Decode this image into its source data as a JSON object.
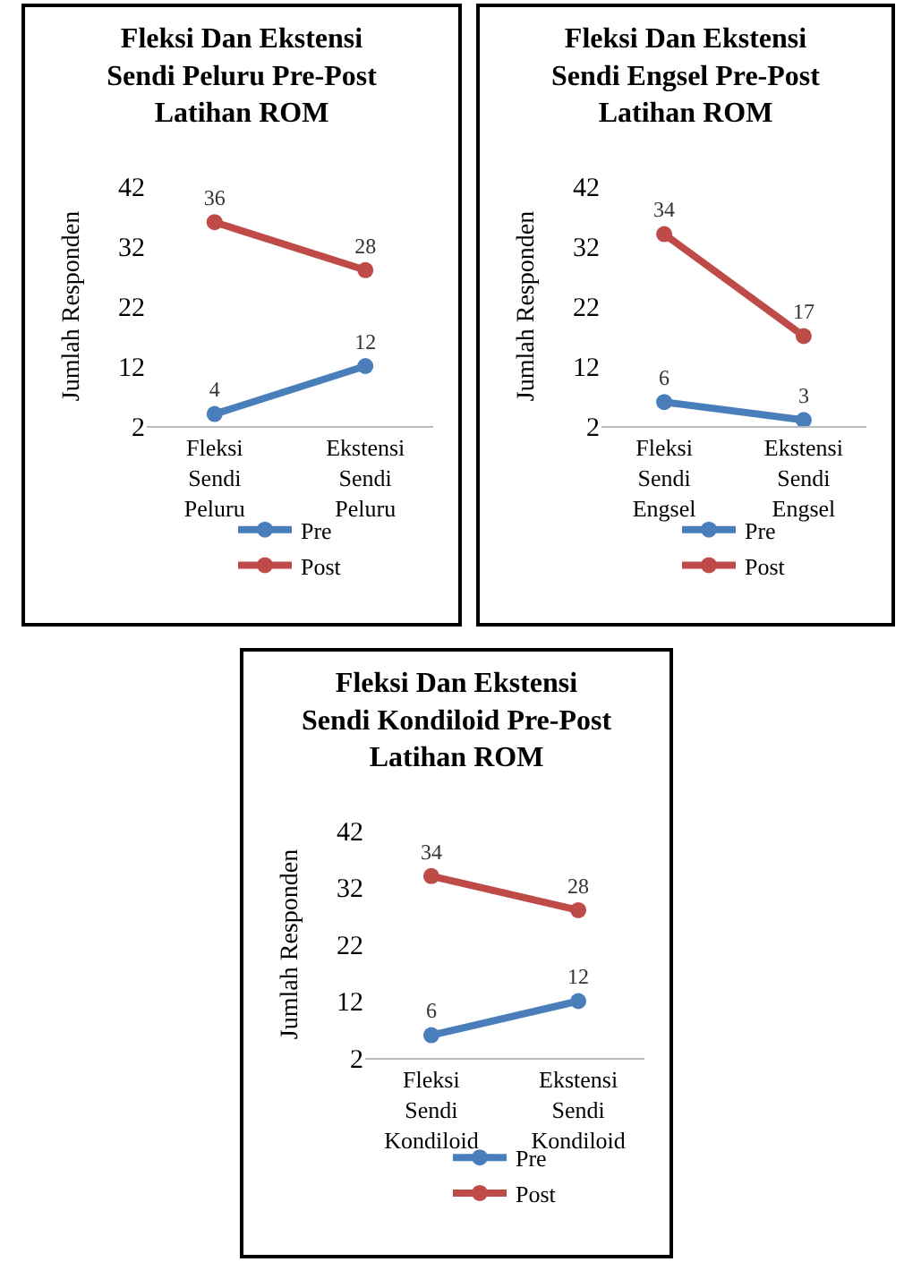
{
  "chart_data": [
    {
      "type": "line",
      "title": "Fleksi Dan Ekstensi Sendi Peluru Pre-Post Latihan ROM",
      "ylabel": "Jumlah Responden",
      "categories": [
        "Fleksi Sendi Peluru",
        "Ekstensi Sendi Peluru"
      ],
      "series": [
        {
          "name": "Pre",
          "color": "#4a7ebb",
          "values": [
            4,
            12
          ]
        },
        {
          "name": "Post",
          "color": "#be4b48",
          "values": [
            36,
            28
          ]
        }
      ],
      "ylim": [
        2,
        42
      ],
      "yticks": [
        2,
        12,
        22,
        32,
        42
      ],
      "grid": false,
      "legend": "bottom",
      "marker": "circle",
      "line_style": "solid",
      "data_labels": true
    },
    {
      "type": "line",
      "title": "Fleksi Dan Ekstensi Sendi Engsel Pre-Post Latihan ROM",
      "ylabel": "Jumlah Responden",
      "categories": [
        "Fleksi Sendi Engsel",
        "Ekstensi Sendi Engsel"
      ],
      "series": [
        {
          "name": "Pre",
          "color": "#4a7ebb",
          "values": [
            6,
            3
          ]
        },
        {
          "name": "Post",
          "color": "#be4b48",
          "values": [
            34,
            17
          ]
        }
      ],
      "ylim": [
        2,
        42
      ],
      "yticks": [
        2,
        12,
        22,
        32,
        42
      ],
      "grid": false,
      "legend": "bottom",
      "marker": "circle",
      "line_style": "solid",
      "data_labels": true
    },
    {
      "type": "line",
      "title": "Fleksi Dan Ekstensi Sendi Kondiloid Pre-Post Latihan ROM",
      "ylabel": "Jumlah Responden",
      "categories": [
        "Fleksi Sendi Kondiloid",
        "Ekstensi Sendi Kondiloid"
      ],
      "series": [
        {
          "name": "Pre",
          "color": "#4a7ebb",
          "values": [
            6,
            12
          ]
        },
        {
          "name": "Post",
          "color": "#be4b48",
          "values": [
            34,
            28
          ]
        }
      ],
      "ylim": [
        2,
        42
      ],
      "yticks": [
        2,
        12,
        22,
        32,
        42
      ],
      "grid": false,
      "legend": "bottom",
      "marker": "circle",
      "line_style": "solid",
      "data_labels": true
    }
  ]
}
